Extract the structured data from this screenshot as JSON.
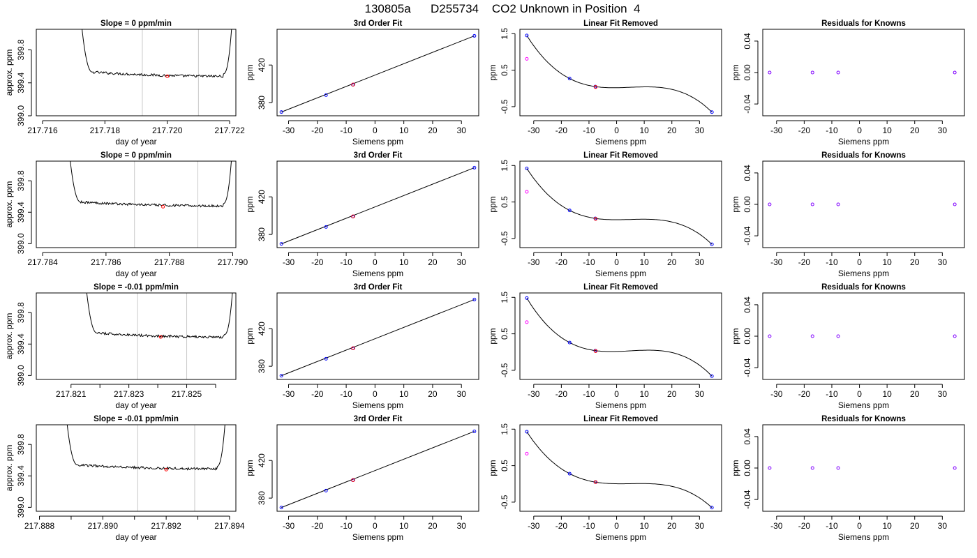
{
  "figure_title": "130805a      D255734    CO2 Unknown in Position  4",
  "colors": {
    "axis": "#000000",
    "trace": "#000000",
    "fit": "#000000",
    "window_lines": "#c8c8c8",
    "known_points": "#0000ff",
    "unknown_point": "#ff0000",
    "residual_points": "#8000ff",
    "linear_removed_unknown": "#ff00ff"
  },
  "chart_data": [
    {
      "row": 0,
      "col": 0,
      "type": "line",
      "title": "Slope =  0  ppm/min",
      "xlabel": "day of year",
      "ylabel": "approx. ppm",
      "xlim": [
        217.7158,
        217.7222
      ],
      "ylim": [
        399.0,
        400.05
      ],
      "xticks": [
        217.716,
        217.718,
        217.72,
        217.722
      ],
      "xtick_labels": [
        "217.716",
        "217.718",
        "217.720",
        "217.722"
      ],
      "yticks": [
        399.0,
        399.4,
        399.8
      ],
      "ytick_labels": [
        "399.0",
        "399.4",
        "399.8"
      ],
      "window": [
        217.7192,
        217.721
      ],
      "plateau": [
        217.7176,
        217.7218
      ],
      "plateau_level": 399.48,
      "unknown_point": [
        217.72,
        399.48
      ]
    },
    {
      "row": 0,
      "col": 1,
      "type": "line",
      "title": "3rd Order Fit",
      "xlabel": "Siemens ppm",
      "ylabel": "ppm",
      "xlim": [
        -34,
        36
      ],
      "ylim": [
        366,
        458
      ],
      "xticks": [
        -30,
        -20,
        -10,
        0,
        10,
        20,
        30
      ],
      "xtick_labels": [
        "-30",
        "-20",
        "-10",
        "0",
        "10",
        "20",
        "30"
      ],
      "yticks": [
        380,
        420
      ],
      "ytick_labels": [
        "380",
        "420"
      ],
      "known_x": [
        -32.5,
        -17.0,
        -7.7,
        34.5
      ],
      "known_y": [
        370.0,
        388.0,
        399.0,
        451.0
      ],
      "unknown_point": [
        -7.6,
        399.2
      ]
    },
    {
      "row": 0,
      "col": 2,
      "type": "scatter",
      "title": "Linear Fit Removed",
      "xlabel": "Siemens ppm",
      "ylabel": "ppm",
      "xlim": [
        -35,
        38
      ],
      "ylim": [
        -0.75,
        1.62
      ],
      "xticks": [
        -30,
        -20,
        -10,
        0,
        10,
        20,
        30
      ],
      "xtick_labels": [
        "-30",
        "-20",
        "-10",
        "0",
        "10",
        "20",
        "30"
      ],
      "yticks": [
        -0.5,
        0.5,
        1.5
      ],
      "ytick_labels": [
        "-0.5",
        "0.5",
        "1.5"
      ],
      "known_x": [
        -32.5,
        -17.0,
        -7.7,
        34.5
      ],
      "known_y": [
        1.45,
        0.27,
        0.05,
        -0.65
      ],
      "unknown_point": [
        -7.6,
        0.04
      ],
      "linear_removed_unknown": [
        -32.5,
        0.81
      ]
    },
    {
      "row": 0,
      "col": 3,
      "type": "scatter",
      "title": "Residuals for Knowns",
      "xlabel": "Siemens ppm",
      "ylabel": "ppm",
      "xlim": [
        -35,
        38
      ],
      "ylim": [
        -0.055,
        0.055
      ],
      "xticks": [
        -30,
        -20,
        -10,
        0,
        10,
        20,
        30
      ],
      "xtick_labels": [
        "-30",
        "-20",
        "-10",
        "0",
        "10",
        "20",
        "30"
      ],
      "yticks": [
        -0.04,
        0.0,
        0.04
      ],
      "ytick_labels": [
        "-0.04",
        "0.00",
        "0.04"
      ],
      "residual_x": [
        -32.5,
        -17.0,
        -7.7,
        34.5
      ],
      "residual_y": [
        0.0,
        0.0,
        0.0,
        0.0
      ]
    },
    {
      "row": 1,
      "col": 0,
      "type": "line",
      "title": "Slope =  0  ppm/min",
      "xlabel": "day of year",
      "ylabel": "approx. ppm",
      "xlim": [
        217.7838,
        217.7901
      ],
      "ylim": [
        398.95,
        400.05
      ],
      "xticks": [
        217.784,
        217.786,
        217.788,
        217.79
      ],
      "xtick_labels": [
        "217.784",
        "217.786",
        "217.788",
        "217.790"
      ],
      "yticks": [
        399.0,
        399.4,
        399.8
      ],
      "ytick_labels": [
        "399.0",
        "399.4",
        "399.8"
      ],
      "window": [
        217.7869,
        217.7889
      ],
      "plateau": [
        217.7852,
        217.7897
      ],
      "plateau_level": 399.48,
      "unknown_point": [
        217.7878,
        399.47
      ]
    },
    {
      "row": 1,
      "col": 1,
      "type": "line",
      "title": "3rd Order Fit",
      "xlabel": "Siemens ppm",
      "ylabel": "ppm",
      "xlim": [
        -34,
        36
      ],
      "ylim": [
        366,
        458
      ],
      "xticks": [
        -30,
        -20,
        -10,
        0,
        10,
        20,
        30
      ],
      "xtick_labels": [
        "-30",
        "-20",
        "-10",
        "0",
        "10",
        "20",
        "30"
      ],
      "yticks": [
        380,
        420
      ],
      "ytick_labels": [
        "380",
        "420"
      ],
      "known_x": [
        -32.5,
        -17.0,
        -7.7,
        34.5
      ],
      "known_y": [
        370.0,
        388.0,
        399.0,
        451.0
      ],
      "unknown_point": [
        -7.6,
        399.2
      ]
    },
    {
      "row": 1,
      "col": 2,
      "type": "scatter",
      "title": "Linear Fit Removed",
      "xlabel": "Siemens ppm",
      "ylabel": "ppm",
      "xlim": [
        -35,
        38
      ],
      "ylim": [
        -0.75,
        1.62
      ],
      "xticks": [
        -30,
        -20,
        -10,
        0,
        10,
        20,
        30
      ],
      "xtick_labels": [
        "-30",
        "-20",
        "-10",
        "0",
        "10",
        "20",
        "30"
      ],
      "yticks": [
        -0.5,
        0.5,
        1.5
      ],
      "ytick_labels": [
        "-0.5",
        "0.5",
        "1.5"
      ],
      "known_x": [
        -32.5,
        -17.0,
        -7.7,
        34.5
      ],
      "known_y": [
        1.42,
        0.27,
        0.05,
        -0.66
      ],
      "unknown_point": [
        -7.6,
        0.04
      ],
      "linear_removed_unknown": [
        -32.5,
        0.78
      ]
    },
    {
      "row": 1,
      "col": 3,
      "type": "scatter",
      "title": "Residuals for Knowns",
      "xlabel": "Siemens ppm",
      "ylabel": "ppm",
      "xlim": [
        -35,
        38
      ],
      "ylim": [
        -0.055,
        0.055
      ],
      "xticks": [
        -30,
        -20,
        -10,
        0,
        10,
        20,
        30
      ],
      "xtick_labels": [
        "-30",
        "-20",
        "-10",
        "0",
        "10",
        "20",
        "30"
      ],
      "yticks": [
        -0.04,
        0.0,
        0.04
      ],
      "ytick_labels": [
        "-0.04",
        "0.00",
        "0.04"
      ],
      "residual_x": [
        -32.5,
        -17.0,
        -7.7,
        34.5
      ],
      "residual_y": [
        0.0,
        0.0,
        0.0,
        0.0
      ]
    },
    {
      "row": 2,
      "col": 0,
      "type": "line",
      "title": "Slope =  -0.01  ppm/min",
      "xlabel": "day of year",
      "ylabel": "approx. ppm",
      "xlim": [
        217.8198,
        217.8267
      ],
      "ylim": [
        398.95,
        400.05
      ],
      "xticks": [
        217.821,
        217.822,
        217.823,
        217.824,
        217.825,
        217.826
      ],
      "xtick_labels": [
        "217.821",
        "",
        "217.823",
        "",
        "217.825",
        ""
      ],
      "yticks": [
        399.0,
        399.4,
        399.8
      ],
      "ytick_labels": [
        "399.0",
        "399.4",
        "399.8"
      ],
      "window": [
        217.8233,
        217.825
      ],
      "plateau": [
        217.8219,
        217.8263
      ],
      "plateau_level": 399.49,
      "unknown_point": [
        217.8241,
        399.49
      ]
    },
    {
      "row": 2,
      "col": 1,
      "type": "line",
      "title": "3rd Order Fit",
      "xlabel": "Siemens ppm",
      "ylabel": "ppm",
      "xlim": [
        -34,
        36
      ],
      "ylim": [
        366,
        458
      ],
      "xticks": [
        -30,
        -20,
        -10,
        0,
        10,
        20,
        30
      ],
      "xtick_labels": [
        "-30",
        "-20",
        "-10",
        "0",
        "10",
        "20",
        "30"
      ],
      "yticks": [
        380,
        420
      ],
      "ytick_labels": [
        "380",
        "420"
      ],
      "known_x": [
        -32.5,
        -17.0,
        -7.7,
        34.5
      ],
      "known_y": [
        370.0,
        388.0,
        399.0,
        451.0
      ],
      "unknown_point": [
        -7.6,
        399.2
      ]
    },
    {
      "row": 2,
      "col": 2,
      "type": "scatter",
      "title": "Linear Fit Removed",
      "xlabel": "Siemens ppm",
      "ylabel": "ppm",
      "xlim": [
        -35,
        38
      ],
      "ylim": [
        -0.75,
        1.62
      ],
      "xticks": [
        -30,
        -20,
        -10,
        0,
        10,
        20,
        30
      ],
      "xtick_labels": [
        "-30",
        "-20",
        "-10",
        "0",
        "10",
        "20",
        "30"
      ],
      "yticks": [
        -0.5,
        0.5,
        1.5
      ],
      "ytick_labels": [
        "-0.5",
        "0.5",
        "1.5"
      ],
      "known_x": [
        -32.5,
        -17.0,
        -7.7,
        34.5
      ],
      "known_y": [
        1.48,
        0.26,
        0.04,
        -0.66
      ],
      "unknown_point": [
        -7.6,
        0.03
      ],
      "linear_removed_unknown": [
        -32.5,
        0.82
      ]
    },
    {
      "row": 2,
      "col": 3,
      "type": "scatter",
      "title": "Residuals for Knowns",
      "xlabel": "Siemens ppm",
      "ylabel": "ppm",
      "xlim": [
        -35,
        38
      ],
      "ylim": [
        -0.055,
        0.055
      ],
      "xticks": [
        -30,
        -20,
        -10,
        0,
        10,
        20,
        30
      ],
      "xtick_labels": [
        "-30",
        "-20",
        "-10",
        "0",
        "10",
        "20",
        "30"
      ],
      "yticks": [
        -0.04,
        0.0,
        0.04
      ],
      "ytick_labels": [
        "-0.04",
        "0.00",
        "0.04"
      ],
      "residual_x": [
        -32.5,
        -17.0,
        -7.7,
        34.5
      ],
      "residual_y": [
        0.0,
        0.0,
        0.0,
        0.0
      ]
    },
    {
      "row": 3,
      "col": 0,
      "type": "line",
      "title": "Slope =  -0.01  ppm/min",
      "xlabel": "day of year",
      "ylabel": "approx. ppm",
      "xlim": [
        217.8879,
        217.8942
      ],
      "ylim": [
        398.95,
        400.05
      ],
      "xticks": [
        217.888,
        217.889,
        217.89,
        217.891,
        217.892,
        217.893,
        217.894
      ],
      "xtick_labels": [
        "217.888",
        "",
        "217.890",
        "",
        "217.892",
        "",
        "217.894"
      ],
      "yticks": [
        399.0,
        399.4,
        399.8
      ],
      "ytick_labels": [
        "399.0",
        "399.4",
        "399.8"
      ],
      "window": [
        217.8911,
        217.8929
      ],
      "plateau": [
        217.8892,
        217.8936
      ],
      "plateau_level": 399.49,
      "unknown_point": [
        217.892,
        399.48
      ]
    },
    {
      "row": 3,
      "col": 1,
      "type": "line",
      "title": "3rd Order Fit",
      "xlabel": "Siemens ppm",
      "ylabel": "ppm",
      "xlim": [
        -34,
        36
      ],
      "ylim": [
        366,
        458
      ],
      "xticks": [
        -30,
        -20,
        -10,
        0,
        10,
        20,
        30
      ],
      "xtick_labels": [
        "-30",
        "-20",
        "-10",
        "0",
        "10",
        "20",
        "30"
      ],
      "yticks": [
        380,
        420
      ],
      "ytick_labels": [
        "380",
        "420"
      ],
      "known_x": [
        -32.5,
        -17.0,
        -7.7,
        34.5
      ],
      "known_y": [
        370.0,
        388.0,
        399.0,
        451.0
      ],
      "unknown_point": [
        -7.6,
        399.2
      ]
    },
    {
      "row": 3,
      "col": 2,
      "type": "scatter",
      "title": "Linear Fit Removed",
      "xlabel": "Siemens ppm",
      "ylabel": "ppm",
      "xlim": [
        -35,
        38
      ],
      "ylim": [
        -0.75,
        1.62
      ],
      "xticks": [
        -30,
        -20,
        -10,
        0,
        10,
        20,
        30
      ],
      "xtick_labels": [
        "-30",
        "-20",
        "-10",
        "0",
        "10",
        "20",
        "30"
      ],
      "yticks": [
        -0.5,
        0.5,
        1.5
      ],
      "ytick_labels": [
        "-0.5",
        "0.5",
        "1.5"
      ],
      "known_x": [
        -32.5,
        -17.0,
        -7.7,
        34.5
      ],
      "known_y": [
        1.43,
        0.28,
        0.05,
        -0.65
      ],
      "unknown_point": [
        -7.6,
        0.05
      ],
      "linear_removed_unknown": [
        -32.5,
        0.83
      ]
    },
    {
      "row": 3,
      "col": 3,
      "type": "scatter",
      "title": "Residuals for Knowns",
      "xlabel": "Siemens ppm",
      "ylabel": "ppm",
      "xlim": [
        -35,
        38
      ],
      "ylim": [
        -0.055,
        0.055
      ],
      "xticks": [
        -30,
        -20,
        -10,
        0,
        10,
        20,
        30
      ],
      "xtick_labels": [
        "-30",
        "-20",
        "-10",
        "0",
        "10",
        "20",
        "30"
      ],
      "yticks": [
        -0.04,
        0.0,
        0.04
      ],
      "ytick_labels": [
        "-0.04",
        "0.00",
        "0.04"
      ],
      "residual_x": [
        -32.5,
        -17.0,
        -7.7,
        34.5
      ],
      "residual_y": [
        0.0,
        0.0,
        0.0,
        0.0
      ]
    }
  ]
}
